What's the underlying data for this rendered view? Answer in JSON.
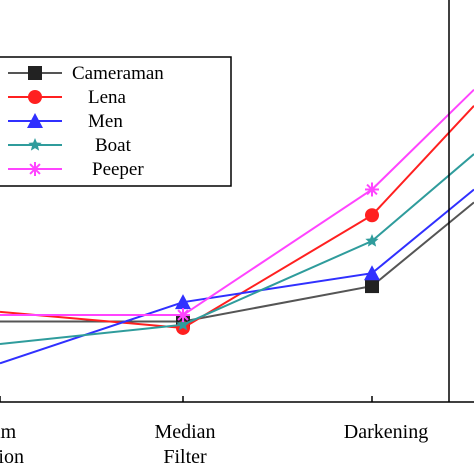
{
  "chart_data": {
    "type": "line",
    "title": "",
    "xlabel": "",
    "ylabel": "",
    "grid": false,
    "legend_position": "top-left",
    "categories": [
      [
        "am",
        "ation"
      ],
      [
        "Median",
        "Filter"
      ],
      [
        "Darkening"
      ],
      [
        ""
      ]
    ],
    "ylim": [
      0,
      1
    ],
    "series": [
      {
        "name": "Cameraman",
        "color": "#555555",
        "marker": "square",
        "values": [
          0.25,
          0.25,
          0.36,
          0.62
        ]
      },
      {
        "name": "Lena",
        "color": "#ff2020",
        "marker": "circle",
        "values": [
          0.28,
          0.23,
          0.58,
          0.92
        ]
      },
      {
        "name": "Men",
        "color": "#3030ff",
        "marker": "triangle",
        "values": [
          0.12,
          0.31,
          0.4,
          0.66
        ]
      },
      {
        "name": "Boat",
        "color": "#2f9c9c",
        "marker": "star",
        "values": [
          0.18,
          0.24,
          0.5,
          0.77
        ]
      },
      {
        "name": "Peeper",
        "color": "#ff44ff",
        "marker": "asterisk",
        "values": [
          0.27,
          0.27,
          0.66,
          0.97
        ]
      }
    ]
  }
}
